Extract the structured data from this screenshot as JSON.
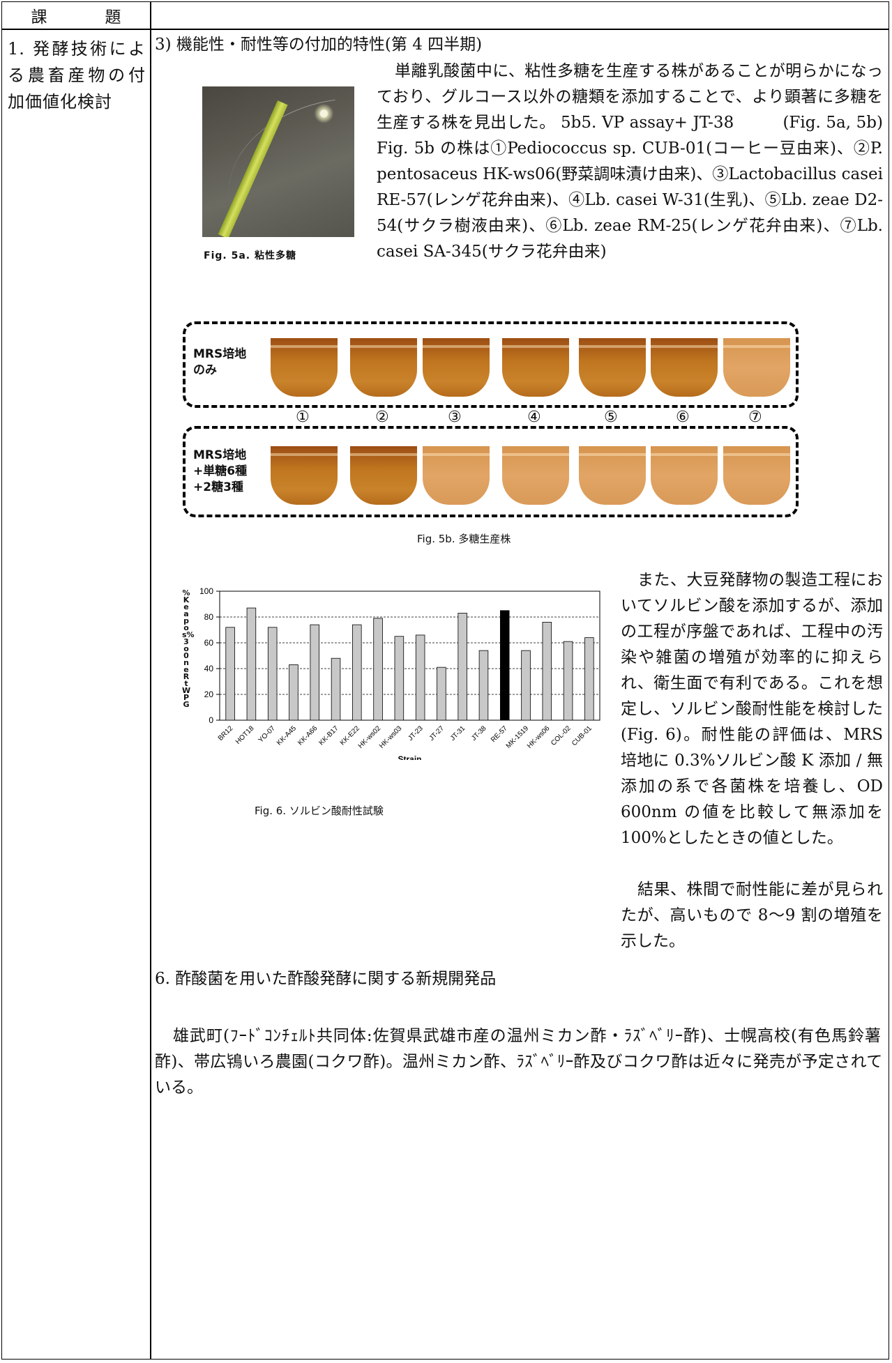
{
  "table": {
    "header_label": "課　題",
    "topic": "1. 発酵技術による農畜産物の付加価値化検討"
  },
  "section3": {
    "heading": "3) 機能性・耐性等の付加的特性(第 4 四半期)",
    "intro_text": "単離乳酸菌中に、粘性多糖を生産する株があることが明らかになっており、グルコース以外の糖類を添加することで、より顕著に多糖を生産する株を見出した。 5b5. VP assay+ JT-38　　　(Fig. 5a, 5b) Fig. 5b の株は①Pediococcus sp. CUB-01(コーヒー豆由来)、②P. pentosaceus HK-ws06(野菜調味漬け由来)、③Lactobacillus casei RE-57(レンゲ花弁由来)、④Lb. casei W-31(生乳)、⑤Lb. zeae D2-54(サクラ樹液由来)、⑥Lb. zeae RM-25(レンゲ花弁由来)、⑦Lb. casei SA-345(サクラ花弁由来)",
    "fig5a_caption": "Fig. 5a. 粘性多糖",
    "fig5b": {
      "box1_label": "MRS培地\nのみ",
      "box2_label": "MRS培地\n+単糖6種\n+2糖3種",
      "tube_numbers": [
        "①",
        "②",
        "③",
        "④",
        "⑤",
        "⑥",
        "⑦"
      ],
      "caption": "Fig. 5b. 多糖生産株"
    }
  },
  "fig6": {
    "caption": "Fig. 6. ソルビン酸耐性試験",
    "ylabel_garbled": "%Keapos%3o0neRtWPG",
    "text_right_1": "また、大豆発酵物の製造工程においてソルビン酸を添加するが、添加の工程が序盤であれば、工程中の汚染や雑菌の増殖が効率的に抑えられ、衛生面で有利である。これを想定し、ソルビン酸耐性能を検討した(Fig. 6)。耐性能の評価は、MRS 培地に 0.3%ソルビン酸 K 添加 / 無添加の系で各菌株を培養し、OD 600nm の値を比較して無添加を 100%としたときの値とした。",
    "text_right_2": "結果、株間で耐性能に差が見られたが、高いもので 8～9 割の増殖を示した。"
  },
  "chart_data": {
    "type": "bar",
    "categories": [
      "BR12",
      "HOT18",
      "YO-07",
      "KK-A45",
      "KK-A66",
      "KK-B17",
      "KK-E22",
      "HK-ws02",
      "HK-ws03",
      "JT-23",
      "JT-27",
      "JT-31",
      "JT-38",
      "RE-57",
      "MK-1519",
      "HK-ws06",
      "COL-02",
      "CUB-01"
    ],
    "values": [
      72,
      87,
      72,
      43,
      74,
      48,
      74,
      79,
      65,
      66,
      41,
      83,
      54,
      85,
      54,
      76,
      61,
      64
    ],
    "highlight": "RE-57",
    "colors": {
      "bar": "#c8c8c8",
      "highlight": "#000000"
    },
    "xlabel": "Strain",
    "ylim": [
      0,
      100
    ],
    "yticks": [
      0,
      20,
      40,
      60,
      80,
      100
    ],
    "grid": "dashed horizontal"
  },
  "section6": {
    "heading": "6. 酢酸菌を用いた酢酸発酵に関する新規開発品",
    "body": "雄武町(ﾌｰﾄﾞｺﾝﾁｪﾙﾄ共同体:佐賀県武雄市産の温州ミカン酢・ﾗｽﾞﾍﾞﾘｰ酢)、士幌高校(有色馬鈴薯酢)、帯広鴇いろ農園(コクワ酢)。温州ミカン酢、ﾗｽﾞﾍﾞﾘｰ酢及びコクワ酢は近々に発売が予定されている。"
  }
}
